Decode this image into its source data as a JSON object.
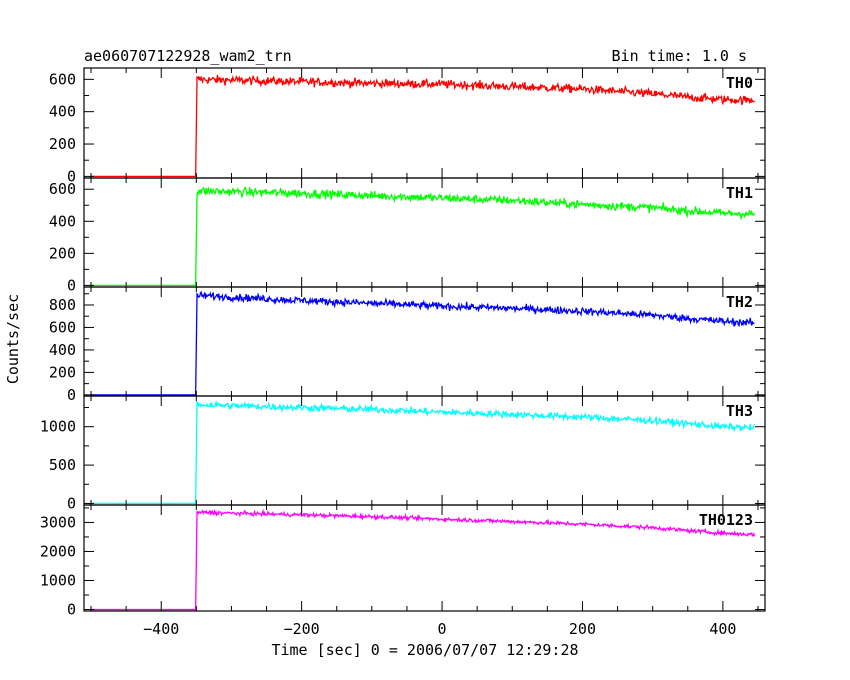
{
  "header": {
    "title": "ae060707122928_wam2_trn",
    "bin_time": "Bin time: 1.0 s"
  },
  "chart_data": {
    "type": "line",
    "xlabel": "Time [sec] 0 = 2006/07/07 12:29:28",
    "ylabel": "Counts/sec",
    "xlim": [
      -510,
      460
    ],
    "xticks": [
      -400,
      -200,
      0,
      200,
      400
    ],
    "grid": false,
    "onset_x": -350,
    "x_end": 445,
    "panels": [
      {
        "name": "TH0",
        "color": "#ff0000",
        "ylim": [
          -10,
          670
        ],
        "yticks": [
          0,
          200,
          400,
          600
        ],
        "x": [
          -500,
          -351,
          -349,
          -300,
          -200,
          -100,
          0,
          100,
          200,
          300,
          350,
          400,
          445
        ],
        "y": [
          0,
          0,
          600,
          595,
          585,
          575,
          570,
          555,
          540,
          510,
          490,
          475,
          470
        ],
        "noise": 45
      },
      {
        "name": "TH1",
        "color": "#00ff00",
        "ylim": [
          -10,
          670
        ],
        "yticks": [
          0,
          200,
          400,
          600
        ],
        "x": [
          -500,
          -351,
          -349,
          -300,
          -200,
          -100,
          0,
          100,
          200,
          300,
          350,
          400,
          445
        ],
        "y": [
          0,
          0,
          590,
          585,
          575,
          560,
          545,
          530,
          505,
          485,
          465,
          450,
          445
        ],
        "noise": 45
      },
      {
        "name": "TH2",
        "color": "#0000ff",
        "ylim": [
          -10,
          960
        ],
        "yticks": [
          0,
          200,
          400,
          600,
          800
        ],
        "x": [
          -500,
          -351,
          -349,
          -300,
          -200,
          -100,
          0,
          100,
          200,
          300,
          350,
          400,
          445
        ],
        "y": [
          0,
          0,
          885,
          870,
          840,
          815,
          790,
          770,
          745,
          710,
          680,
          655,
          640
        ],
        "noise": 55
      },
      {
        "name": "TH3",
        "color": "#00ffff",
        "ylim": [
          -20,
          1400
        ],
        "yticks": [
          0,
          500,
          1000
        ],
        "x": [
          -500,
          -351,
          -349,
          -300,
          -200,
          -100,
          0,
          100,
          200,
          300,
          350,
          400,
          445
        ],
        "y": [
          0,
          0,
          1290,
          1275,
          1250,
          1225,
          1190,
          1160,
          1125,
          1080,
          1040,
          1000,
          985
        ],
        "noise": 75
      },
      {
        "name": "TH0123",
        "color": "#ff00ff",
        "ylim": [
          -50,
          3600
        ],
        "yticks": [
          0,
          1000,
          2000,
          3000
        ],
        "x": [
          -500,
          -351,
          -349,
          -300,
          -200,
          -100,
          0,
          100,
          200,
          300,
          350,
          400,
          445
        ],
        "y": [
          0,
          0,
          3350,
          3320,
          3260,
          3200,
          3110,
          3030,
          2940,
          2820,
          2720,
          2630,
          2580
        ],
        "noise": 110
      }
    ]
  }
}
